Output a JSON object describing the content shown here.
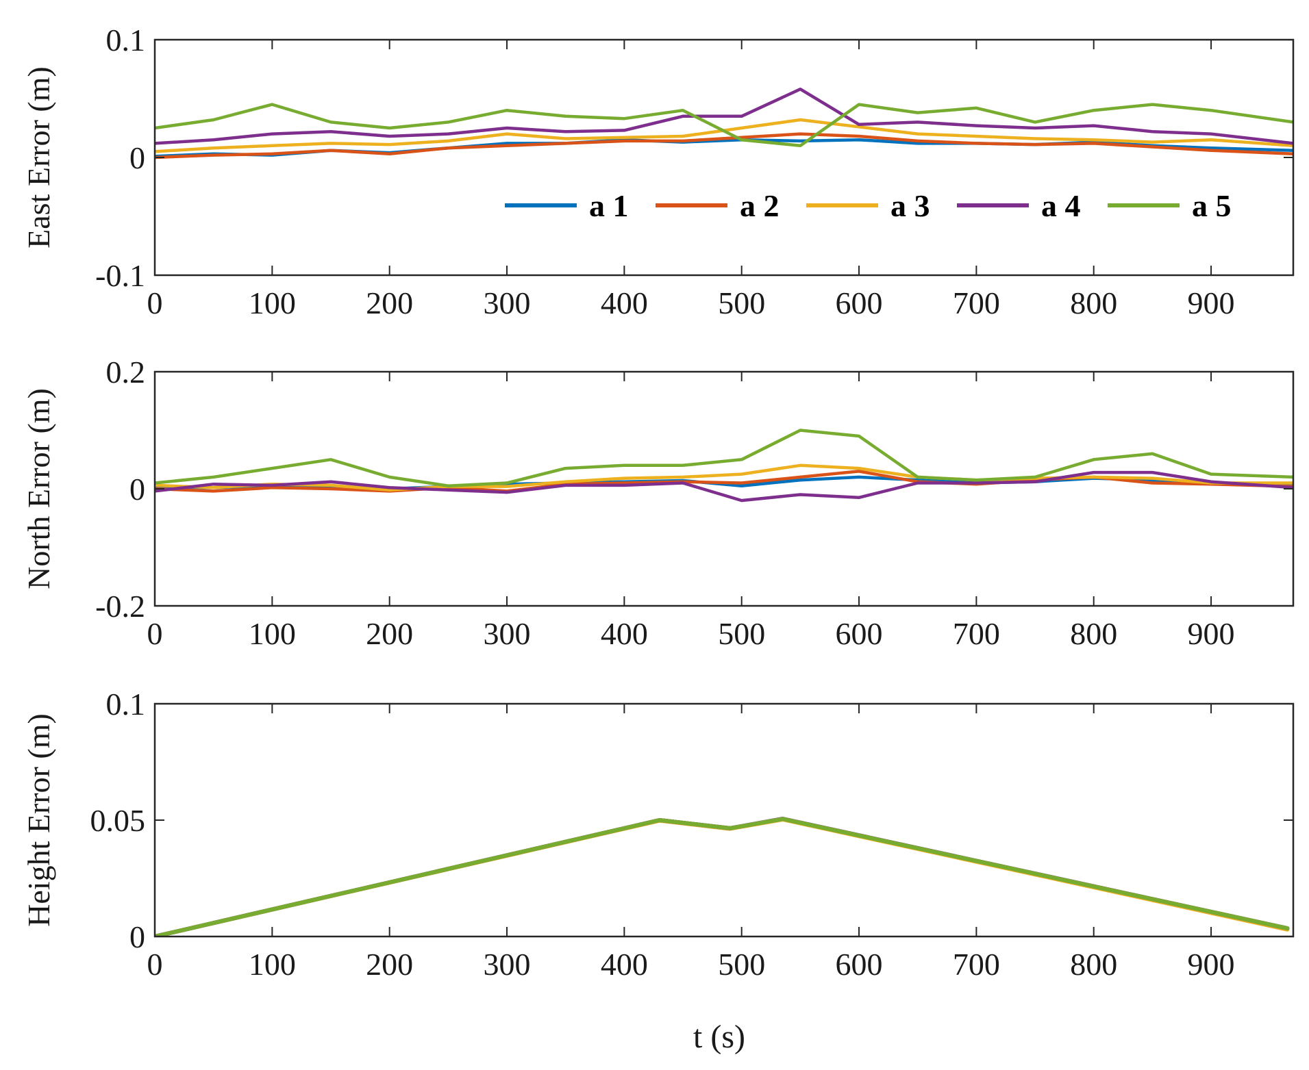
{
  "colors": {
    "a1": "#0072BD",
    "a2": "#D95319",
    "a3": "#EDB120",
    "a4": "#7E2F8E",
    "a5": "#77AC30",
    "axis": "#262626"
  },
  "chart_data": [
    {
      "type": "line",
      "id": "east",
      "ylabel": "East Error (m)",
      "xlabel": "",
      "xlim": [
        0,
        970
      ],
      "ylim": [
        -0.1,
        0.1
      ],
      "xticks": [
        0,
        100,
        200,
        300,
        400,
        500,
        600,
        700,
        800,
        900
      ],
      "xtick_labels": [
        "0",
        "100",
        "200",
        "300",
        "400",
        "500",
        "600",
        "700",
        "800",
        "900"
      ],
      "yticks": [
        -0.1,
        0,
        0.1
      ],
      "ytick_labels": [
        "-0.1",
        "0",
        "0.1"
      ],
      "legend": {
        "placement": "upper-right",
        "entries": [
          "a 1",
          "a 2",
          "a 3",
          "a 4",
          "a 5"
        ]
      },
      "series": [
        {
          "name": "a 1",
          "color_key": "a1",
          "x": [
            0,
            50,
            100,
            150,
            200,
            250,
            300,
            350,
            400,
            450,
            500,
            550,
            600,
            650,
            700,
            750,
            800,
            850,
            900,
            970
          ],
          "y": [
            0.001,
            0.003,
            0.002,
            0.006,
            0.004,
            0.008,
            0.012,
            0.012,
            0.015,
            0.013,
            0.015,
            0.014,
            0.015,
            0.012,
            0.012,
            0.011,
            0.013,
            0.01,
            0.008,
            0.006
          ]
        },
        {
          "name": "a 2",
          "color_key": "a2",
          "x": [
            0,
            50,
            100,
            150,
            200,
            250,
            300,
            350,
            400,
            450,
            500,
            550,
            600,
            650,
            700,
            750,
            800,
            850,
            900,
            970
          ],
          "y": [
            0.0,
            0.002,
            0.003,
            0.006,
            0.003,
            0.008,
            0.01,
            0.012,
            0.014,
            0.014,
            0.017,
            0.02,
            0.018,
            0.014,
            0.012,
            0.011,
            0.012,
            0.009,
            0.006,
            0.003
          ]
        },
        {
          "name": "a 3",
          "color_key": "a3",
          "x": [
            0,
            50,
            100,
            150,
            200,
            250,
            300,
            350,
            400,
            450,
            500,
            550,
            600,
            650,
            700,
            750,
            800,
            850,
            900,
            970
          ],
          "y": [
            0.005,
            0.008,
            0.01,
            0.012,
            0.011,
            0.014,
            0.02,
            0.016,
            0.017,
            0.018,
            0.025,
            0.032,
            0.026,
            0.02,
            0.018,
            0.016,
            0.015,
            0.013,
            0.015,
            0.01
          ]
        },
        {
          "name": "a 4",
          "color_key": "a4",
          "x": [
            0,
            50,
            100,
            150,
            200,
            250,
            300,
            350,
            400,
            450,
            500,
            550,
            600,
            650,
            700,
            750,
            800,
            850,
            900,
            970
          ],
          "y": [
            0.012,
            0.015,
            0.02,
            0.022,
            0.018,
            0.02,
            0.025,
            0.022,
            0.023,
            0.035,
            0.035,
            0.058,
            0.028,
            0.03,
            0.027,
            0.025,
            0.027,
            0.022,
            0.02,
            0.012
          ]
        },
        {
          "name": "a 5",
          "color_key": "a5",
          "x": [
            0,
            50,
            100,
            150,
            200,
            250,
            300,
            350,
            400,
            450,
            500,
            550,
            600,
            650,
            700,
            750,
            800,
            850,
            900,
            970
          ],
          "y": [
            0.025,
            0.032,
            0.045,
            0.03,
            0.025,
            0.03,
            0.04,
            0.035,
            0.033,
            0.04,
            0.015,
            0.01,
            0.045,
            0.038,
            0.042,
            0.03,
            0.04,
            0.045,
            0.04,
            0.03
          ]
        }
      ]
    },
    {
      "type": "line",
      "id": "north",
      "ylabel": "North Error (m)",
      "xlabel": "",
      "xlim": [
        0,
        970
      ],
      "ylim": [
        -0.2,
        0.2
      ],
      "xticks": [
        0,
        100,
        200,
        300,
        400,
        500,
        600,
        700,
        800,
        900
      ],
      "xtick_labels": [
        "0",
        "100",
        "200",
        "300",
        "400",
        "500",
        "600",
        "700",
        "800",
        "900"
      ],
      "yticks": [
        -0.2,
        0,
        0.2
      ],
      "ytick_labels": [
        "-0.2",
        "0",
        "0.2"
      ],
      "series": [
        {
          "name": "a 1",
          "color_key": "a1",
          "x": [
            0,
            50,
            100,
            150,
            200,
            250,
            300,
            350,
            400,
            450,
            500,
            550,
            600,
            650,
            700,
            750,
            800,
            850,
            900,
            970
          ],
          "y": [
            0.003,
            0.002,
            0.005,
            0.004,
            0.0,
            0.004,
            0.008,
            0.01,
            0.012,
            0.014,
            0.005,
            0.015,
            0.02,
            0.015,
            0.01,
            0.012,
            0.018,
            0.015,
            0.01,
            0.006
          ]
        },
        {
          "name": "a 2",
          "color_key": "a2",
          "x": [
            0,
            50,
            100,
            150,
            200,
            250,
            300,
            350,
            400,
            450,
            500,
            550,
            600,
            650,
            700,
            750,
            800,
            850,
            900,
            970
          ],
          "y": [
            0.0,
            -0.004,
            0.002,
            0.0,
            -0.004,
            0.002,
            -0.004,
            0.008,
            0.01,
            0.012,
            0.01,
            0.02,
            0.03,
            0.012,
            0.008,
            0.015,
            0.02,
            0.01,
            0.008,
            0.004
          ]
        },
        {
          "name": "a 3",
          "color_key": "a3",
          "x": [
            0,
            50,
            100,
            150,
            200,
            250,
            300,
            350,
            400,
            450,
            500,
            550,
            600,
            650,
            700,
            750,
            800,
            850,
            900,
            970
          ],
          "y": [
            0.006,
            0.002,
            0.008,
            0.006,
            -0.002,
            0.004,
            0.004,
            0.012,
            0.018,
            0.02,
            0.025,
            0.04,
            0.035,
            0.02,
            0.015,
            0.018,
            0.02,
            0.018,
            0.01,
            0.01
          ]
        },
        {
          "name": "a 4",
          "color_key": "a4",
          "x": [
            0,
            50,
            100,
            150,
            200,
            250,
            300,
            350,
            400,
            450,
            500,
            550,
            600,
            650,
            700,
            750,
            800,
            850,
            900,
            970
          ],
          "y": [
            -0.004,
            0.008,
            0.006,
            0.012,
            0.002,
            -0.002,
            -0.006,
            0.006,
            0.006,
            0.01,
            -0.02,
            -0.01,
            -0.015,
            0.01,
            0.01,
            0.012,
            0.028,
            0.028,
            0.012,
            0.002
          ]
        },
        {
          "name": "a 5",
          "color_key": "a5",
          "x": [
            0,
            50,
            100,
            150,
            200,
            250,
            300,
            350,
            400,
            450,
            500,
            550,
            600,
            650,
            700,
            750,
            800,
            850,
            900,
            970
          ],
          "y": [
            0.01,
            0.02,
            0.035,
            0.05,
            0.02,
            0.005,
            0.01,
            0.035,
            0.04,
            0.04,
            0.05,
            0.1,
            0.09,
            0.02,
            0.015,
            0.02,
            0.05,
            0.06,
            0.025,
            0.02
          ]
        }
      ]
    },
    {
      "type": "line",
      "id": "height",
      "ylabel": "Height Error (m)",
      "xlabel": "t (s)",
      "xlim": [
        0,
        970
      ],
      "ylim": [
        0,
        0.1
      ],
      "xticks": [
        0,
        100,
        200,
        300,
        400,
        500,
        600,
        700,
        800,
        900
      ],
      "xtick_labels": [
        "0",
        "100",
        "200",
        "300",
        "400",
        "500",
        "600",
        "700",
        "800",
        "900"
      ],
      "yticks": [
        0,
        0.05,
        0.1
      ],
      "ytick_labels": [
        "0",
        "0.05",
        "0.1"
      ],
      "series": [
        {
          "name": "a 1",
          "color_key": "a1",
          "x": [
            0,
            430,
            490,
            535,
            965
          ],
          "y": [
            0.0,
            0.05,
            0.0465,
            0.0505,
            0.0035
          ]
        },
        {
          "name": "a 2",
          "color_key": "a2",
          "x": [
            0,
            430,
            490,
            535,
            965
          ],
          "y": [
            0.0,
            0.05,
            0.0465,
            0.0505,
            0.0035
          ]
        },
        {
          "name": "a 3",
          "color_key": "a3",
          "x": [
            0,
            430,
            490,
            535,
            965
          ],
          "y": [
            0.0,
            0.0498,
            0.0463,
            0.0503,
            0.003
          ]
        },
        {
          "name": "a 4",
          "color_key": "a4",
          "x": [
            0,
            430,
            490,
            535,
            965
          ],
          "y": [
            0.0,
            0.05,
            0.0465,
            0.0506,
            0.0035
          ]
        },
        {
          "name": "a 5",
          "color_key": "a5",
          "x": [
            0,
            430,
            490,
            535,
            965
          ],
          "y": [
            0.0,
            0.05,
            0.0465,
            0.0505,
            0.0035
          ]
        }
      ]
    }
  ]
}
